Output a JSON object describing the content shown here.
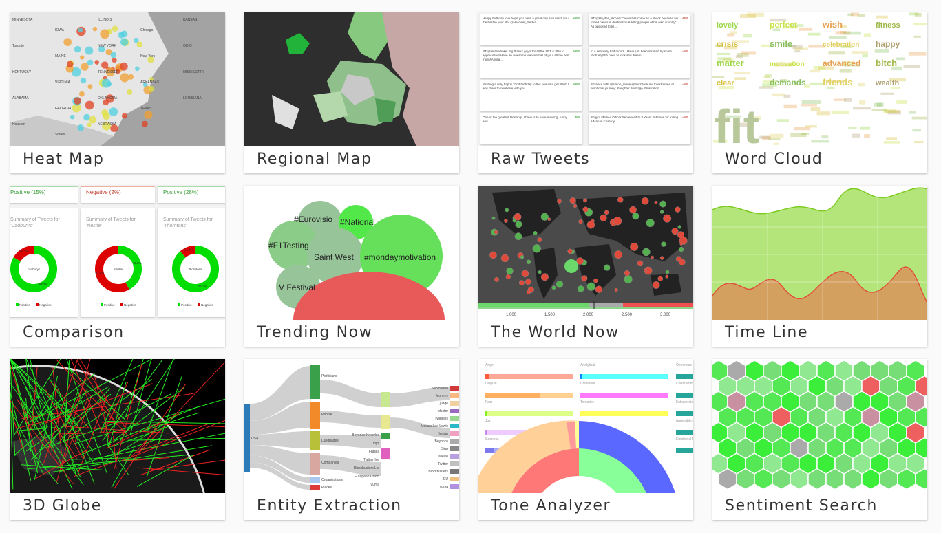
{
  "cards": [
    {
      "label": "Heat Map",
      "map_labels": [
        "MINNESOTA",
        "IOWA",
        "ILLINOIS",
        "Chicago",
        "KANSAS",
        "Toronto",
        "MAINE",
        "NEW YORK",
        "New York",
        "OHIO",
        "KENTUCKY",
        "VIRGINIA",
        "TENNESSEE",
        "ARKANSAS",
        "MISSISSIPPI",
        "ALABAMA",
        "GEORGIA",
        "OKLAHOMA",
        "TEXAS",
        "LOUISIANA",
        "Houston",
        "States",
        "NEBRASKA"
      ]
    },
    {
      "label": "Regional Map"
    },
    {
      "label": "Raw Tweets",
      "tweets": [
        {
          "text": "Happy Birthday love hope you have a great day and i wish you the best in your life! @Hardwell_Serbia",
          "score": "100%",
          "score_color": "#3a9e3a"
        },
        {
          "text": "RT @Hayder_alKhoei: \"news has come as a shock because we joined hands in destruction & killing people of his own country\" As opposed to kil...",
          "score": "-80%",
          "score_color": "#c0392b"
        },
        {
          "text": "RT @alijanelbeke: Big thanks guy's for all the #RT & #fav to appreciated! Have an awesome weekend all of you! All the best from #Apulia...",
          "score": "100%",
          "score_color": "#3a9e3a"
        },
        {
          "text": "In a seriously bad mood... Have just been insulted by some idiot! Arghhh need to look and dream...",
          "score": "-70%",
          "score_color": "#c0392b"
        },
        {
          "text": "Wishing a very happy 22nd birthday to this beautiful girl! Wish I was there to celebrate with you...",
          "score": "100%",
          "score_color": "#3a9e3a"
        },
        {
          "text": "#Greece with @simon_reeve @bbc2 took me to extremes of emotional journey: #laughter #outrage #frustration",
          "score": "-70%",
          "score_color": "#c0392b"
        },
        {
          "text": "One of the greatest blessings I have is to have a loving, funny and...",
          "score": "90%",
          "score_color": "#3a9e3a"
        },
        {
          "text": "#Egypt #Police Officer Sentenced to 8 Years in Prison for Killing a Man in Custody",
          "score": "-70%",
          "score_color": "#c0392b"
        }
      ]
    },
    {
      "label": "Word Cloud",
      "words": [
        "fit",
        "lovely",
        "perfect",
        "wish",
        "fitness",
        "crisis",
        "smile",
        "celebration",
        "happy",
        "matter",
        "motivation",
        "advanced",
        "bitch",
        "clear",
        "demands",
        "friends",
        "wealth"
      ]
    },
    {
      "label": "Comparison",
      "tops": [
        {
          "text": "Positive (15%)",
          "color": "#3a9e3a"
        },
        {
          "text": "Negative (2%)",
          "color": "#c0392b"
        },
        {
          "text": "Positive (28%)",
          "color": "#3a9e3a"
        }
      ],
      "charts": [
        {
          "title": "Summary of Tweets for",
          "brand": "'Cadburys'",
          "center": "cadburys",
          "positive": 83.3,
          "negative": 16.7,
          "pos_label": "83.3%",
          "neg_label": "16.7%"
        },
        {
          "title": "Summary of Tweets for",
          "brand": "'Nestle'",
          "center": "nestle",
          "positive": 42.2,
          "negative": 57.8,
          "pos_label": "42.2%",
          "neg_label": "57.8%"
        },
        {
          "title": "Summary of Tweets for",
          "brand": "'Thorntons'",
          "center": "thorntons",
          "positive": 88.7,
          "negative": 11.3,
          "pos_label": "88.7%",
          "neg_label": "11.3%"
        }
      ],
      "legend": {
        "positive": "Positive",
        "negative": "Negative"
      },
      "colors": {
        "positive": "#00dd00",
        "negative": "#dd0000"
      }
    },
    {
      "label": "Trending Now",
      "bubbles": [
        "#Eurovisio",
        "#National",
        "#F1Testing",
        "Saint West",
        "#mondaymotivation",
        "V Festival"
      ]
    },
    {
      "label": "The World Now",
      "ticks": [
        "1,000",
        "1,500",
        "2,000",
        "2,500",
        "3,000"
      ]
    },
    {
      "label": "Time Line"
    },
    {
      "label": "3D Globe"
    },
    {
      "label": "Entity Extraction",
      "nodes": [
        "USA",
        "Politicians",
        "People",
        "Languages",
        "Companies",
        "Organizations",
        "Places",
        "Beyonce Knowles",
        "Toys",
        "Frasks",
        "Twitter Inc",
        "Blockbusters Ltd",
        "European Union",
        "Vuma",
        "Senioreten",
        "Mommy",
        "judge",
        "doctor",
        "Twinnies",
        "Mosaic Lee Lewis",
        "Indian",
        "Beyonce",
        "Sign",
        "Twelko",
        "Twitter",
        "Blockbusters",
        "EU",
        "vuma"
      ]
    },
    {
      "label": "Tone Analyzer",
      "emotions": [
        "Anger",
        "Disgust",
        "Fear",
        "Joy",
        "Sadness"
      ],
      "language": [
        "Analytical",
        "Confident",
        "Tentative"
      ],
      "social": [
        "Openness",
        "Conscientio",
        "Extraversio",
        "Agreeablen",
        "Emotional R"
      ]
    },
    {
      "label": "Sentiment Search"
    }
  ]
}
